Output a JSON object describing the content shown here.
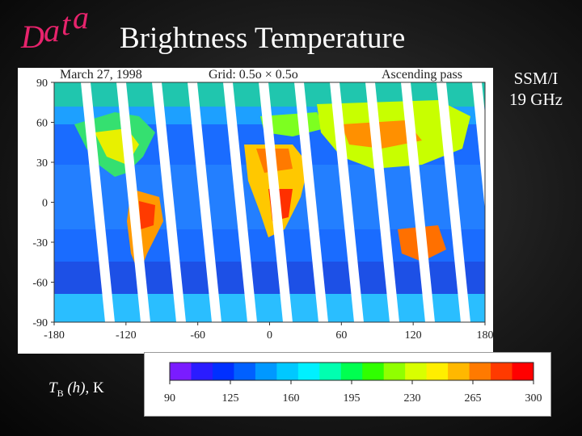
{
  "header": {
    "data_word": "Data",
    "letters": [
      "D",
      "a",
      "t",
      "a"
    ],
    "title": "Brightness Temperature"
  },
  "map": {
    "date": "March 27, 1998",
    "grid": "Grid: 0.5o × 0.5o",
    "pass": "Ascending pass",
    "y_ticks": [
      "90",
      "60",
      "30",
      "0",
      "-30",
      "-60",
      "-90"
    ],
    "x_ticks": [
      "-180",
      "-120",
      "-60",
      "0",
      "60",
      "120",
      "180"
    ]
  },
  "sensor": {
    "line1": "SSM/I",
    "line2": "19 GHz"
  },
  "legend": {
    "label_symbol": "T",
    "label_sub": "B",
    "label_var": "(h)",
    "label_unit": ", K",
    "ticks": [
      "90",
      "125",
      "160",
      "195",
      "230",
      "265",
      "300"
    ],
    "colors": [
      "#7a1cff",
      "#2a1cff",
      "#0030ff",
      "#0060ff",
      "#0098ff",
      "#00c8ff",
      "#00f0ff",
      "#00ffb0",
      "#00ff50",
      "#30ff00",
      "#90ff00",
      "#d8ff00",
      "#ffee00",
      "#ffb800",
      "#ff7a00",
      "#ff3a00",
      "#ff0000"
    ]
  },
  "chart_data": {
    "type": "heatmap",
    "title": "Brightness Temperature",
    "subtitle": "March 27, 1998",
    "xlabel": "",
    "ylabel": "",
    "xlim": [
      -180,
      180
    ],
    "ylim": [
      -90,
      90
    ],
    "x_ticks": [
      -180,
      -120,
      -60,
      0,
      60,
      120,
      180
    ],
    "y_ticks": [
      90,
      60,
      30,
      0,
      -30,
      -60,
      -90
    ],
    "colorbar": {
      "label": "TB (h), K",
      "min": 90,
      "max": 300,
      "ticks": [
        90,
        125,
        160,
        195,
        230,
        265,
        300
      ]
    }
  }
}
